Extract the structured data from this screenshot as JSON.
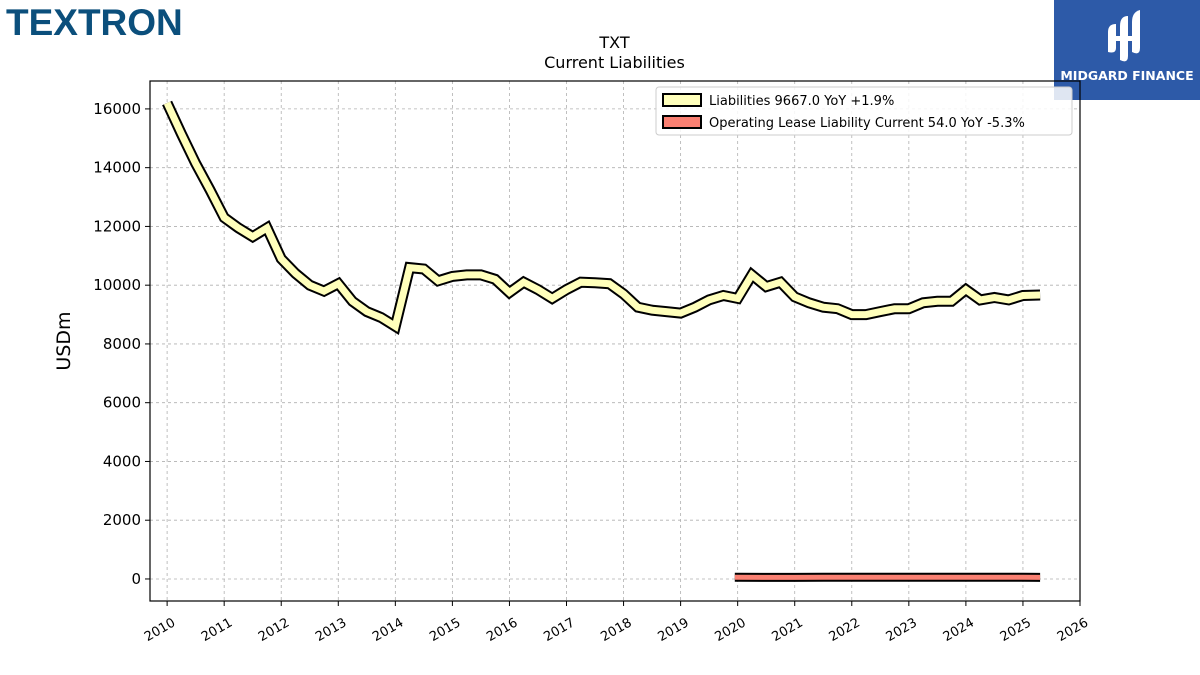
{
  "header": {
    "company_logo": "TEXTRON",
    "badge_label": "MIDGARD FINANCE",
    "badge_icon": "midgard-logo-mark"
  },
  "chart_data": {
    "type": "line",
    "title": "TXT",
    "subtitle": "Current  Liabilities",
    "ylabel": "USDm",
    "xlabel": "",
    "ylim": [
      -750,
      16950
    ],
    "xlim": [
      2009.7,
      2026.0
    ],
    "grid": true,
    "legend_position": "top-right",
    "y_ticks": [
      0,
      2000,
      4000,
      6000,
      8000,
      10000,
      12000,
      14000,
      16000
    ],
    "x_ticks": [
      "2010",
      "2011",
      "2012",
      "2013",
      "2014",
      "2015",
      "2016",
      "2017",
      "2018",
      "2019",
      "2020",
      "2021",
      "2022",
      "2023",
      "2024",
      "2025",
      "2026"
    ],
    "series": [
      {
        "name": "Liabilities",
        "legend_label": "Liabilities  9667.0 YoY +1.9%",
        "color": "#ffffbb",
        "x": [
          2010.0,
          2010.25,
          2010.5,
          2010.75,
          2011.0,
          2011.25,
          2011.5,
          2011.75,
          2012.0,
          2012.25,
          2012.5,
          2012.75,
          2013.0,
          2013.25,
          2013.5,
          2013.75,
          2014.0,
          2014.25,
          2014.5,
          2014.75,
          2015.0,
          2015.25,
          2015.5,
          2015.75,
          2016.0,
          2016.25,
          2016.5,
          2016.75,
          2017.0,
          2017.25,
          2017.5,
          2017.75,
          2018.0,
          2018.25,
          2018.5,
          2018.75,
          2019.0,
          2019.25,
          2019.5,
          2019.75,
          2020.0,
          2020.25,
          2020.5,
          2020.75,
          2021.0,
          2021.25,
          2021.5,
          2021.75,
          2022.0,
          2022.25,
          2022.5,
          2022.75,
          2023.0,
          2023.25,
          2023.5,
          2023.75,
          2024.0,
          2024.25,
          2024.5,
          2024.75,
          2025.0,
          2025.3
        ],
        "values": [
          16200,
          15150,
          14150,
          13250,
          12300,
          11950,
          11650,
          11950,
          10900,
          10400,
          10000,
          9800,
          10050,
          9450,
          9100,
          8900,
          8600,
          10600,
          10550,
          10150,
          10300,
          10350,
          10350,
          10200,
          9750,
          10100,
          9850,
          9550,
          9850,
          10100,
          10080,
          10050,
          9700,
          9250,
          9150,
          9100,
          9050,
          9250,
          9500,
          9650,
          9550,
          10350,
          9950,
          10100,
          9600,
          9400,
          9250,
          9200,
          9000,
          9000,
          9100,
          9200,
          9200,
          9400,
          9450,
          9450,
          9850,
          9500,
          9580,
          9500,
          9650,
          9667
        ]
      },
      {
        "name": "Operating Lease Liability Current",
        "legend_label": "Operating Lease Liability Current  54.0 YoY -5.3%",
        "color": "#fa8072",
        "x": [
          2019.95,
          2020.5,
          2021.0,
          2021.5,
          2022.0,
          2022.5,
          2023.0,
          2023.5,
          2024.0,
          2024.5,
          2025.0,
          2025.3
        ],
        "values": [
          57,
          55,
          54,
          60,
          60,
          59,
          58,
          57,
          57,
          58,
          57,
          54
        ]
      }
    ]
  }
}
